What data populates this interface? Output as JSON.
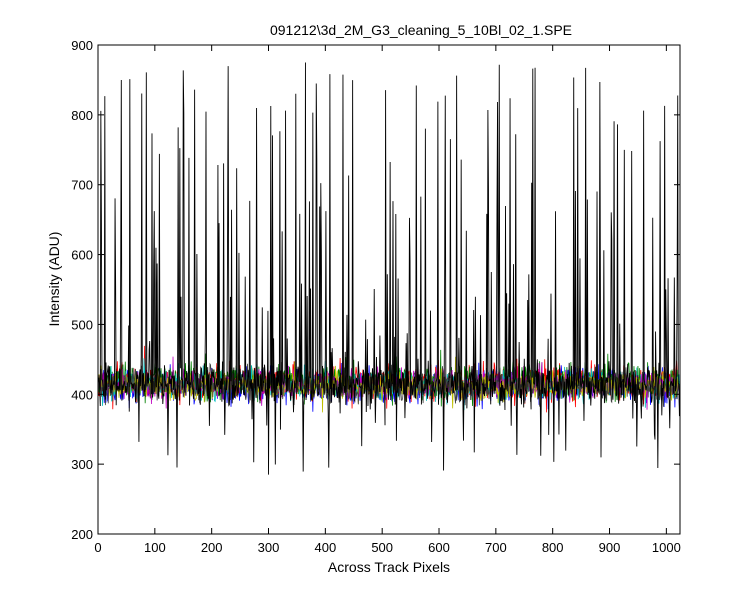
{
  "chart_data": {
    "type": "line",
    "title": "091212\\3d_2M_G3_cleaning_5_10Bl_02_1.SPE",
    "xlabel": "Across Track Pixels",
    "ylabel": "Intensity (ADU)",
    "xlim": [
      0,
      1024
    ],
    "ylim": [
      200,
      900
    ],
    "xticks": [
      0,
      100,
      200,
      300,
      400,
      500,
      600,
      700,
      800,
      900,
      1000
    ],
    "yticks": [
      200,
      300,
      400,
      500,
      600,
      700,
      800,
      900
    ],
    "grid": false,
    "legend": "none",
    "n_points": 1024,
    "series": [
      {
        "color": "#000000",
        "baseline": 413,
        "noise": 14,
        "spike_fraction": 0.16,
        "spike_range": [
          450,
          875
        ],
        "min_value": 285,
        "max_value": 875
      },
      {
        "color": "#0000ff",
        "baseline": 412,
        "noise": 12
      },
      {
        "color": "#ff0000",
        "baseline": 416,
        "noise": 12
      },
      {
        "color": "#008000",
        "baseline": 418,
        "noise": 12
      },
      {
        "color": "#00bfbf",
        "baseline": 414,
        "noise": 11
      },
      {
        "color": "#bf00bf",
        "baseline": 415,
        "noise": 10
      },
      {
        "color": "#bfbf00",
        "baseline": 413,
        "noise": 10
      },
      {
        "color": "#404040",
        "baseline": 411,
        "noise": 11
      }
    ]
  }
}
